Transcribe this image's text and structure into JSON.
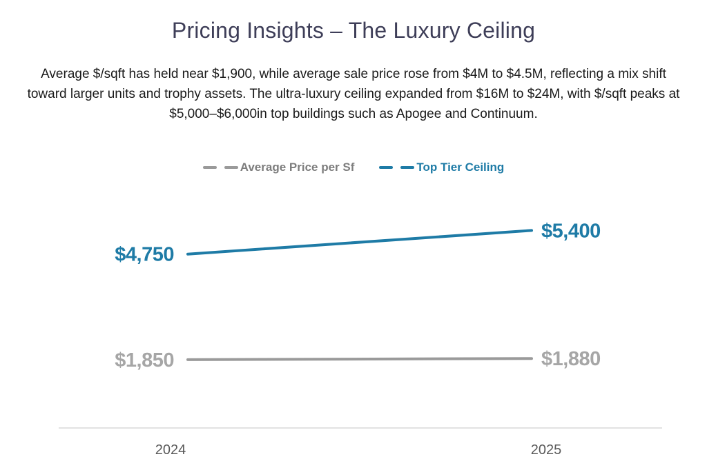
{
  "page": {
    "title": "Pricing Insights – The Luxury Ceiling",
    "description": "Average $/sqft has held near $1,900, while average sale price rose from $4M to $4.5M, reflecting a mix shift toward larger units and trophy assets. The ultra-luxury ceiling expanded from $16M to $24M, with $/sqft peaks at $5,000–$6,000in top buildings such as Apogee and Continuum."
  },
  "legend": {
    "position": "top-center",
    "items": [
      {
        "label": "Average Price per Sf",
        "marker": "dashed-line",
        "color": "#9a9a9a",
        "text_color": "#7d7d7d"
      },
      {
        "label": "Top Tier Ceiling",
        "marker": "dashed-line",
        "color": "#1e7ba6",
        "text_color": "#1e7ba6"
      }
    ]
  },
  "chart_data": {
    "type": "line",
    "title": "Pricing Insights – The Luxury Ceiling",
    "categories": [
      "2024",
      "2025"
    ],
    "series": [
      {
        "name": "Average Price per Sf",
        "values": [
          1850,
          1880
        ],
        "labels": [
          "$1,850",
          "$1,880"
        ],
        "color": "#9a9a9a",
        "label_color": "#a6a6a6"
      },
      {
        "name": "Top Tier Ceiling",
        "values": [
          4750,
          5400
        ],
        "labels": [
          "$4,750",
          "$5,400"
        ],
        "color": "#1e7ba6",
        "label_color": "#1e7ba6"
      }
    ],
    "xlabel": "",
    "ylabel": "",
    "ylim": [
      0,
      6200
    ],
    "grid": false,
    "x_axis_line": true,
    "y_axis_visible": false,
    "data_labels": true,
    "legend_position": "top"
  },
  "colors": {
    "background": "#ffffff",
    "title_text": "#3e3e58",
    "body_text": "#1a1a1a",
    "axis_line": "#d9d9d9",
    "tick_text": "#595959",
    "accent_blue": "#1e7ba6",
    "accent_gray": "#9a9a9a"
  }
}
